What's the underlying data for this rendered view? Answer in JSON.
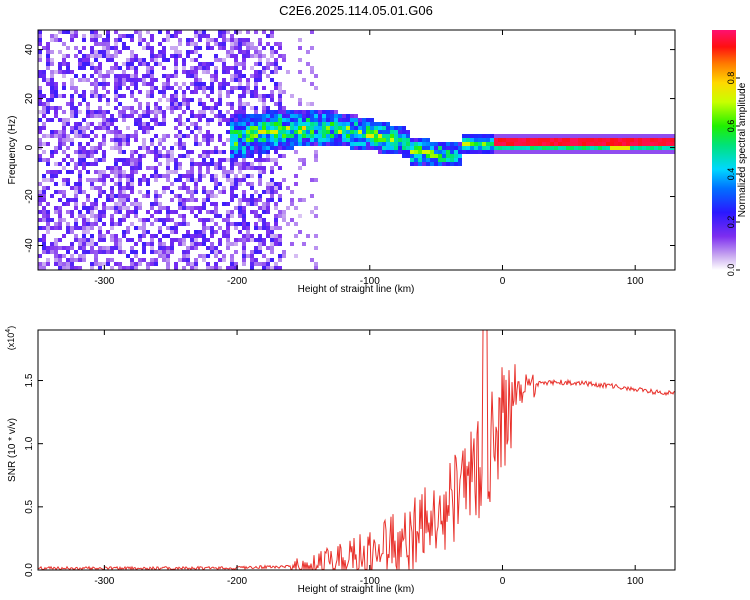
{
  "figure": {
    "title": "C2E6.2025.114.05.01.G06"
  },
  "chart_data": [
    {
      "type": "heatmap",
      "xlabel": "Height of straight line (km)",
      "ylabel": "Frequency (Hz)",
      "xlim": [
        -350,
        130
      ],
      "ylim": [
        -50,
        48
      ],
      "xticks": [
        -300,
        -200,
        -100,
        0,
        100
      ],
      "xtick_labels": [
        "-300",
        "-200",
        "-100",
        "0",
        "100"
      ],
      "yticks": [
        -40,
        -20,
        0,
        20,
        40
      ],
      "ytick_labels": [
        "-40",
        "-20",
        "0",
        "20",
        "40"
      ],
      "colorbar": {
        "label": "Normalized spectral amplitude",
        "range": [
          0,
          1
        ],
        "ticks": [
          0.0,
          0.2,
          0.4,
          0.6,
          0.8
        ],
        "tick_labels": [
          "0.0",
          "0.2",
          "0.4",
          "0.6",
          "0.8"
        ],
        "colormap": "rainbow (white-violet-blue-cyan-green-yellow-red-magenta)"
      },
      "features": [
        {
          "x_range": [
            -350,
            -165
          ],
          "freq_range": [
            -50,
            48
          ],
          "amplitude": 0.15,
          "description": "broadband noise"
        },
        {
          "x_range": [
            -200,
            -40
          ],
          "freq_center": 2,
          "freq_width": 12,
          "amplitude": 0.35
        },
        {
          "x_range": [
            -20,
            130
          ],
          "freq_center": 2,
          "freq_width": 2,
          "amplitude": 0.95
        }
      ],
      "grid": false
    },
    {
      "type": "line",
      "xlabel": "Height of straight line (km)",
      "ylabel": "SNR (10 * v/v)",
      "y_multiplier_label": "(x10",
      "y_multiplier_exp": "4",
      "xlim": [
        -350,
        130
      ],
      "ylim": [
        0,
        1.9
      ],
      "xticks": [
        -300,
        -200,
        -100,
        0,
        100
      ],
      "xtick_labels": [
        "-300",
        "-200",
        "-100",
        "0",
        "100"
      ],
      "yticks": [
        0.0,
        0.5,
        1.0,
        1.5
      ],
      "ytick_labels": [
        "0.0",
        "0.5",
        "1.0",
        "1.5"
      ],
      "series": [
        {
          "color": "#e8302a",
          "x": [
            -350,
            -300,
            -250,
            -200,
            -160,
            -140,
            -120,
            -100,
            -90,
            -80,
            -70,
            -60,
            -50,
            -40,
            -30,
            -20,
            -15,
            -10,
            -5,
            0,
            5,
            10,
            20,
            30,
            40,
            60,
            80,
            100,
            115,
            130
          ],
          "y": [
            0.015,
            0.015,
            0.015,
            0.018,
            0.03,
            0.05,
            0.08,
            0.14,
            0.18,
            0.24,
            0.3,
            0.38,
            0.46,
            0.56,
            0.68,
            0.78,
            0.85,
            0.95,
            1.1,
            1.25,
            1.38,
            1.43,
            1.46,
            1.48,
            1.49,
            1.48,
            1.46,
            1.43,
            1.41,
            1.4
          ]
        }
      ],
      "peak": {
        "x": -13,
        "y": 1.9
      },
      "grid": false
    }
  ]
}
